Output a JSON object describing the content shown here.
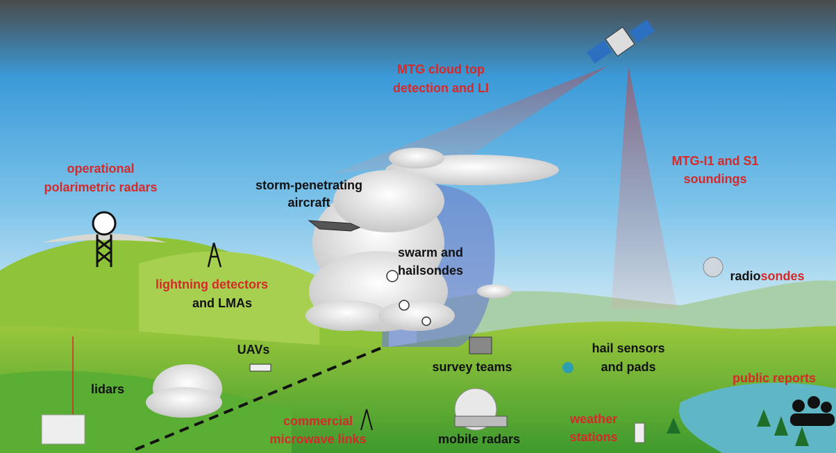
{
  "labels": [
    {
      "lines": [
        "MTG cloud top",
        "detection and LI"
      ]
    },
    {
      "lines": [
        "MTG-I1 and S1",
        "soundings"
      ]
    },
    {
      "lines": [
        "operational",
        "polarimetric radars"
      ]
    },
    {
      "lines": [
        "storm-penetrating",
        "aircraft"
      ]
    },
    {
      "lines": [
        "swarm and",
        "hailsondes"
      ]
    },
    {
      "lines": [
        "radio",
        "sondes"
      ]
    },
    {
      "lines": [
        "lightning detectors",
        "and LMAs"
      ]
    },
    {
      "lines": [
        "UAVs"
      ]
    },
    {
      "lines": [
        "survey teams"
      ]
    },
    {
      "lines": [
        "hail sensors",
        "and pads"
      ]
    },
    {
      "lines": [
        "public reports"
      ]
    },
    {
      "lines": [
        "lidars"
      ]
    },
    {
      "lines": [
        "commercial",
        "microwave links"
      ]
    },
    {
      "lines": [
        "mobile radars"
      ]
    },
    {
      "lines": [
        "weather",
        "stations"
      ]
    }
  ]
}
